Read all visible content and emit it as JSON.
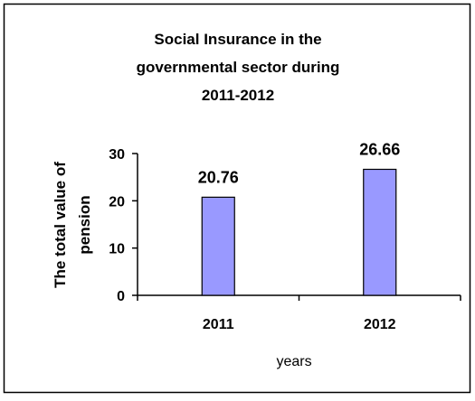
{
  "chart_data": {
    "type": "bar",
    "title_lines": [
      "Social Insurance in the",
      "governmental  sector during",
      "2011-2012"
    ],
    "categories": [
      "2011",
      "2012"
    ],
    "values": [
      20.76,
      26.66
    ],
    "data_labels": [
      "20.76",
      "26.66"
    ],
    "ylabel_lines": [
      "The total value of",
      "pension"
    ],
    "xlabel": "years",
    "ylim": [
      0,
      30
    ],
    "yticks": [
      "0",
      "10",
      "20",
      "30"
    ],
    "grid": false,
    "legend": "none",
    "bar_color": "#9999ff",
    "bar_stroke": "#000000"
  }
}
